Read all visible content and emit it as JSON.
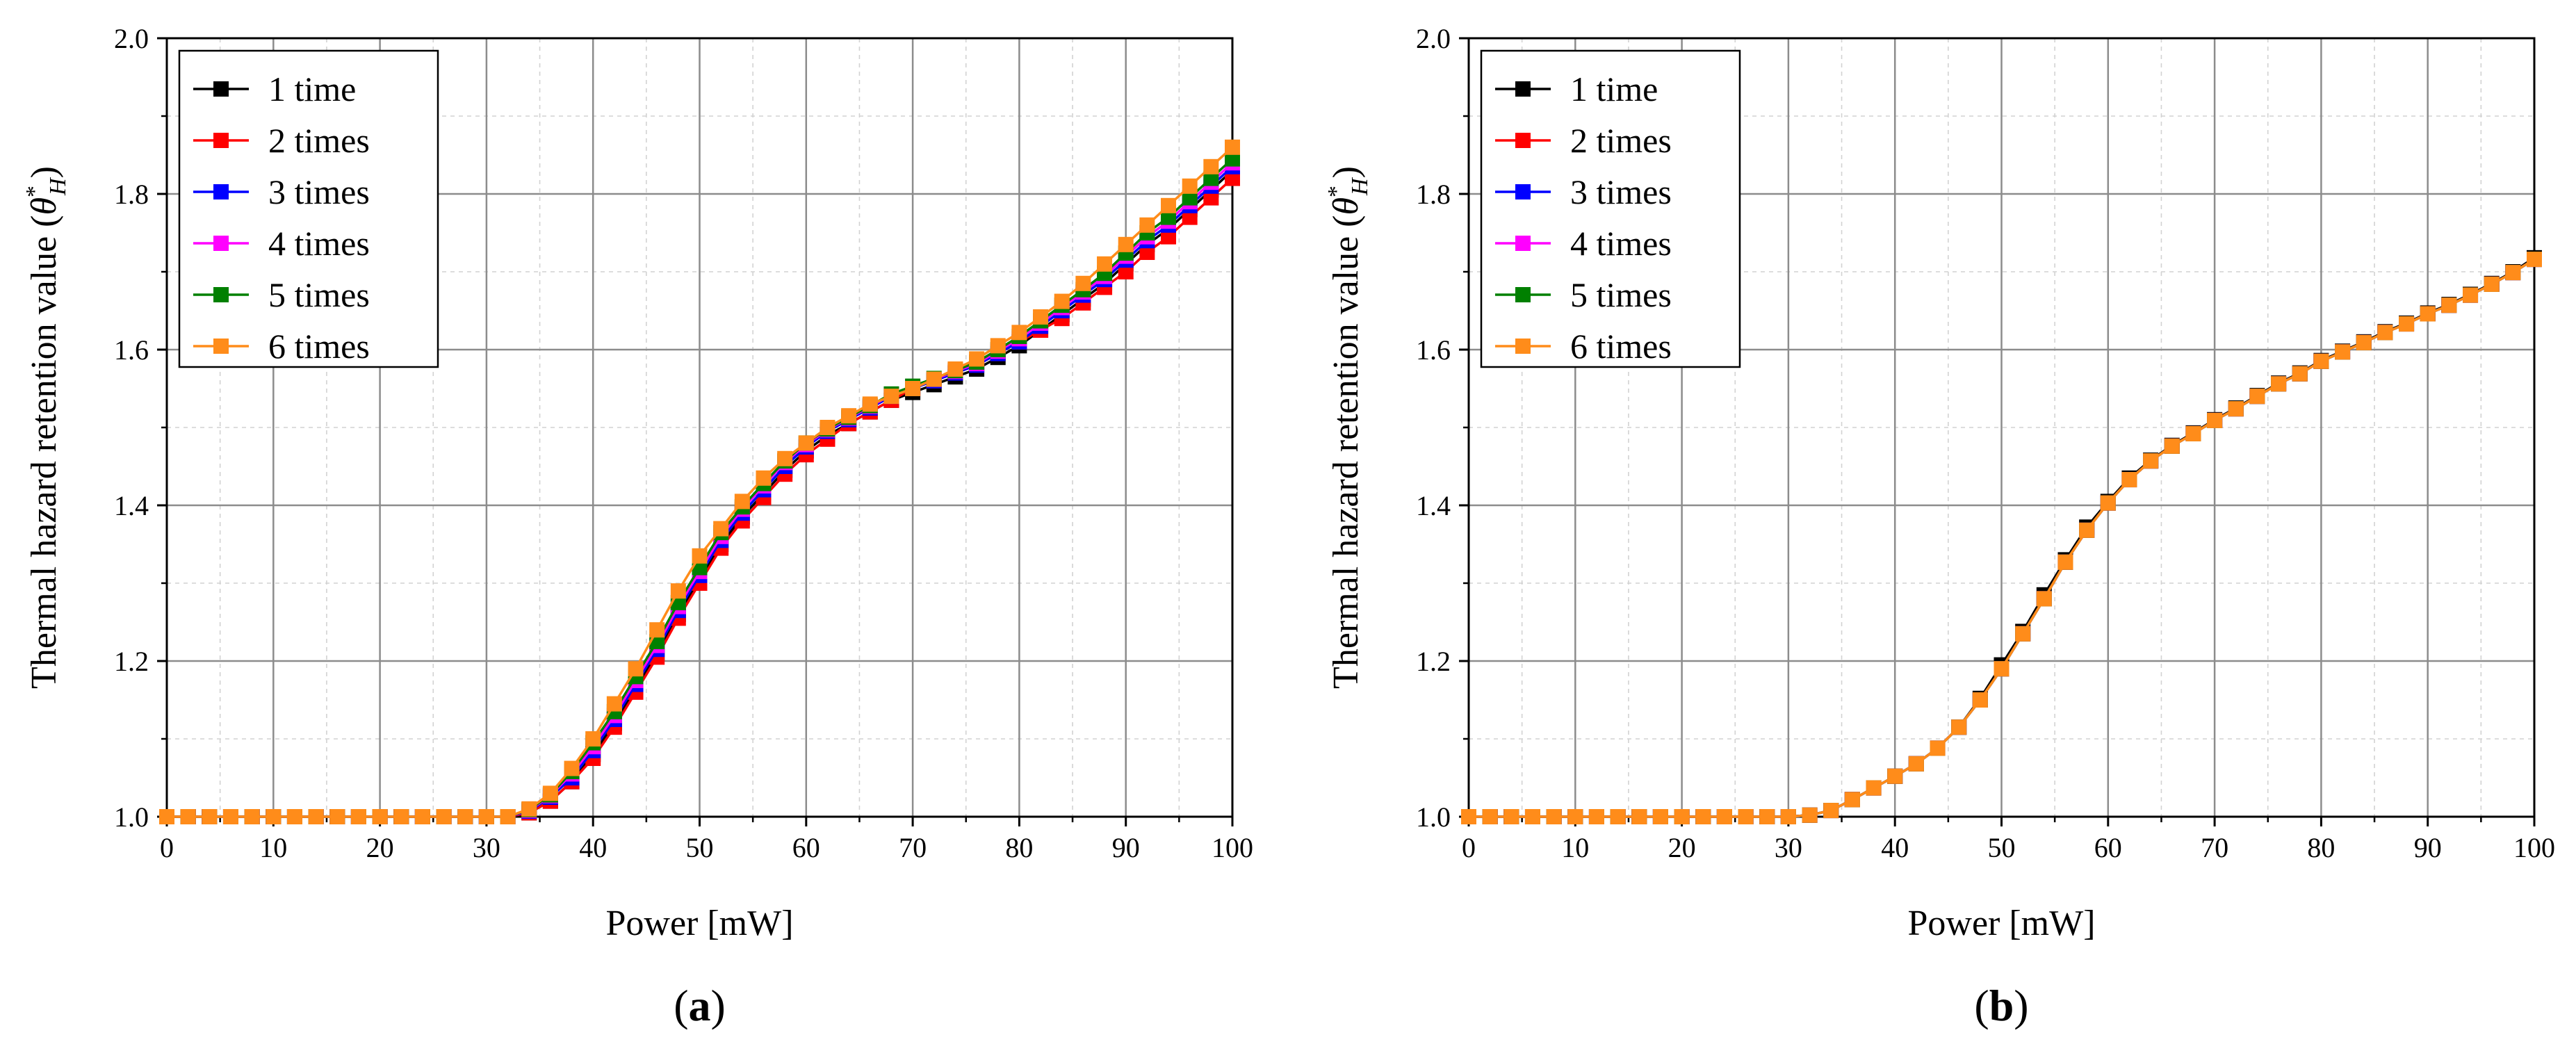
{
  "figure": {
    "panels": [
      "(a)",
      "(b)"
    ]
  },
  "colors": {
    "1 time": "#000000",
    "2 times": "#ff0000",
    "3 times": "#0000ff",
    "4 times": "#ff00ff",
    "5 times": "#008000",
    "6 times": "#ff8c1a"
  },
  "chart_data": [
    {
      "type": "line",
      "panel_label": "(a)",
      "xlabel": "Power [mW]",
      "ylabel": "Thermal hazard retention value (θ*H)",
      "xlim": [
        0,
        100
      ],
      "ylim": [
        1.0,
        2.0
      ],
      "xticks": [
        "0",
        "10",
        "20",
        "30",
        "40",
        "50",
        "60",
        "70",
        "80",
        "90",
        "100"
      ],
      "yticks": [
        "1.0",
        "1.2",
        "1.4",
        "1.6",
        "1.8",
        "2.0"
      ],
      "grid": true,
      "legend_position": "top-left",
      "x": [
        0,
        2,
        4,
        6,
        8,
        10,
        12,
        14,
        16,
        18,
        20,
        22,
        24,
        26,
        28,
        30,
        32,
        34,
        36,
        38,
        40,
        42,
        44,
        46,
        48,
        50,
        52,
        54,
        56,
        58,
        60,
        62,
        64,
        66,
        68,
        70,
        72,
        74,
        76,
        78,
        80,
        82,
        84,
        86,
        88,
        90,
        92,
        94,
        96,
        98,
        100
      ],
      "series": [
        {
          "name": "1 time",
          "values": [
            1.0,
            1.0,
            1.0,
            1.0,
            1.0,
            1.0,
            1.0,
            1.0,
            1.0,
            1.0,
            1.0,
            1.0,
            1.0,
            1.0,
            1.0,
            1.0,
            1.0,
            1.005,
            1.02,
            1.045,
            1.08,
            1.12,
            1.165,
            1.21,
            1.26,
            1.305,
            1.35,
            1.385,
            1.415,
            1.445,
            1.47,
            1.49,
            1.505,
            1.52,
            1.535,
            1.545,
            1.555,
            1.565,
            1.575,
            1.59,
            1.605,
            1.625,
            1.645,
            1.665,
            1.685,
            1.71,
            1.735,
            1.755,
            1.78,
            1.805,
            1.83
          ]
        },
        {
          "name": "2 times",
          "values": [
            1.0,
            1.0,
            1.0,
            1.0,
            1.0,
            1.0,
            1.0,
            1.0,
            1.0,
            1.0,
            1.0,
            1.0,
            1.0,
            1.0,
            1.0,
            1.0,
            1.0,
            1.005,
            1.02,
            1.045,
            1.075,
            1.115,
            1.16,
            1.205,
            1.255,
            1.3,
            1.345,
            1.38,
            1.41,
            1.44,
            1.465,
            1.485,
            1.505,
            1.52,
            1.535,
            1.55,
            1.56,
            1.57,
            1.58,
            1.595,
            1.61,
            1.625,
            1.64,
            1.66,
            1.68,
            1.7,
            1.725,
            1.745,
            1.77,
            1.795,
            1.82
          ]
        },
        {
          "name": "3 times",
          "values": [
            1.0,
            1.0,
            1.0,
            1.0,
            1.0,
            1.0,
            1.0,
            1.0,
            1.0,
            1.0,
            1.0,
            1.0,
            1.0,
            1.0,
            1.0,
            1.0,
            1.0,
            1.007,
            1.025,
            1.05,
            1.085,
            1.125,
            1.17,
            1.215,
            1.265,
            1.31,
            1.355,
            1.39,
            1.42,
            1.45,
            1.475,
            1.495,
            1.51,
            1.525,
            1.54,
            1.55,
            1.56,
            1.57,
            1.58,
            1.595,
            1.61,
            1.63,
            1.65,
            1.67,
            1.69,
            1.715,
            1.74,
            1.76,
            1.785,
            1.81,
            1.835
          ]
        },
        {
          "name": "4 times",
          "values": [
            1.0,
            1.0,
            1.0,
            1.0,
            1.0,
            1.0,
            1.0,
            1.0,
            1.0,
            1.0,
            1.0,
            1.0,
            1.0,
            1.0,
            1.0,
            1.0,
            1.0,
            1.008,
            1.027,
            1.055,
            1.09,
            1.13,
            1.175,
            1.22,
            1.27,
            1.315,
            1.36,
            1.395,
            1.425,
            1.455,
            1.478,
            1.497,
            1.512,
            1.527,
            1.542,
            1.552,
            1.562,
            1.572,
            1.582,
            1.598,
            1.614,
            1.634,
            1.654,
            1.674,
            1.694,
            1.72,
            1.745,
            1.765,
            1.79,
            1.815,
            1.84
          ]
        },
        {
          "name": "5 times",
          "values": [
            1.0,
            1.0,
            1.0,
            1.0,
            1.0,
            1.0,
            1.0,
            1.0,
            1.0,
            1.0,
            1.0,
            1.0,
            1.0,
            1.0,
            1.0,
            1.0,
            1.0,
            1.009,
            1.028,
            1.058,
            1.095,
            1.135,
            1.18,
            1.225,
            1.275,
            1.32,
            1.365,
            1.398,
            1.428,
            1.457,
            1.48,
            1.498,
            1.513,
            1.528,
            1.543,
            1.553,
            1.563,
            1.573,
            1.584,
            1.6,
            1.617,
            1.637,
            1.657,
            1.677,
            1.698,
            1.724,
            1.75,
            1.77,
            1.795,
            1.82,
            1.845
          ]
        },
        {
          "name": "6 times",
          "values": [
            1.0,
            1.0,
            1.0,
            1.0,
            1.0,
            1.0,
            1.0,
            1.0,
            1.0,
            1.0,
            1.0,
            1.0,
            1.0,
            1.0,
            1.0,
            1.0,
            1.0,
            1.01,
            1.03,
            1.062,
            1.1,
            1.145,
            1.19,
            1.24,
            1.29,
            1.335,
            1.37,
            1.405,
            1.435,
            1.46,
            1.48,
            1.5,
            1.515,
            1.53,
            1.54,
            1.55,
            1.562,
            1.575,
            1.588,
            1.605,
            1.622,
            1.642,
            1.662,
            1.685,
            1.71,
            1.735,
            1.76,
            1.785,
            1.81,
            1.835,
            1.86
          ]
        }
      ]
    },
    {
      "type": "line",
      "panel_label": "(b)",
      "xlabel": "Power [mW]",
      "ylabel": "Thermal hazard retention value (θ*H)",
      "xlim": [
        0,
        100
      ],
      "ylim": [
        1.0,
        2.0
      ],
      "xticks": [
        "0",
        "10",
        "20",
        "30",
        "40",
        "50",
        "60",
        "70",
        "80",
        "90",
        "100"
      ],
      "yticks": [
        "1.0",
        "1.2",
        "1.4",
        "1.6",
        "1.8",
        "2.0"
      ],
      "grid": true,
      "legend_position": "top-left",
      "x": [
        0,
        2,
        4,
        6,
        8,
        10,
        12,
        14,
        16,
        18,
        20,
        22,
        24,
        26,
        28,
        30,
        32,
        34,
        36,
        38,
        40,
        42,
        44,
        46,
        48,
        50,
        52,
        54,
        56,
        58,
        60,
        62,
        64,
        66,
        68,
        70,
        72,
        74,
        76,
        78,
        80,
        82,
        84,
        86,
        88,
        90,
        92,
        94,
        96,
        98,
        100
      ],
      "series": [
        {
          "name": "1 time",
          "values": [
            1.0,
            1.0,
            1.0,
            1.0,
            1.0,
            1.0,
            1.0,
            1.0,
            1.0,
            1.0,
            1.0,
            1.0,
            1.0,
            1.0,
            1.0,
            1.0,
            1.002,
            1.008,
            1.022,
            1.037,
            1.052,
            1.068,
            1.088,
            1.115,
            1.152,
            1.195,
            1.238,
            1.285,
            1.33,
            1.372,
            1.405,
            1.435,
            1.458,
            1.477,
            1.493,
            1.51,
            1.525,
            1.541,
            1.557,
            1.57,
            1.586,
            1.598,
            1.61,
            1.623,
            1.634,
            1.647,
            1.658,
            1.671,
            1.685,
            1.7,
            1.718
          ]
        },
        {
          "name": "2 times",
          "values": [
            1.0,
            1.0,
            1.0,
            1.0,
            1.0,
            1.0,
            1.0,
            1.0,
            1.0,
            1.0,
            1.0,
            1.0,
            1.0,
            1.0,
            1.0,
            1.0,
            1.002,
            1.008,
            1.022,
            1.037,
            1.052,
            1.068,
            1.088,
            1.115,
            1.15,
            1.19,
            1.235,
            1.28,
            1.327,
            1.368,
            1.403,
            1.433,
            1.457,
            1.476,
            1.492,
            1.509,
            1.524,
            1.54,
            1.556,
            1.569,
            1.585,
            1.597,
            1.609,
            1.622,
            1.633,
            1.646,
            1.657,
            1.67,
            1.684,
            1.699,
            1.716
          ]
        },
        {
          "name": "3 times",
          "values": [
            1.0,
            1.0,
            1.0,
            1.0,
            1.0,
            1.0,
            1.0,
            1.0,
            1.0,
            1.0,
            1.0,
            1.0,
            1.0,
            1.0,
            1.0,
            1.0,
            1.002,
            1.008,
            1.022,
            1.037,
            1.052,
            1.068,
            1.088,
            1.115,
            1.15,
            1.19,
            1.235,
            1.28,
            1.327,
            1.368,
            1.403,
            1.433,
            1.457,
            1.476,
            1.492,
            1.509,
            1.524,
            1.54,
            1.556,
            1.569,
            1.585,
            1.597,
            1.609,
            1.622,
            1.633,
            1.646,
            1.657,
            1.67,
            1.684,
            1.699,
            1.716
          ]
        },
        {
          "name": "4 times",
          "values": [
            1.0,
            1.0,
            1.0,
            1.0,
            1.0,
            1.0,
            1.0,
            1.0,
            1.0,
            1.0,
            1.0,
            1.0,
            1.0,
            1.0,
            1.0,
            1.0,
            1.002,
            1.008,
            1.022,
            1.037,
            1.052,
            1.068,
            1.088,
            1.115,
            1.15,
            1.19,
            1.235,
            1.28,
            1.327,
            1.368,
            1.403,
            1.433,
            1.457,
            1.476,
            1.492,
            1.509,
            1.524,
            1.54,
            1.556,
            1.569,
            1.585,
            1.597,
            1.609,
            1.622,
            1.633,
            1.646,
            1.657,
            1.67,
            1.684,
            1.699,
            1.716
          ]
        },
        {
          "name": "5 times",
          "values": [
            1.0,
            1.0,
            1.0,
            1.0,
            1.0,
            1.0,
            1.0,
            1.0,
            1.0,
            1.0,
            1.0,
            1.0,
            1.0,
            1.0,
            1.0,
            1.0,
            1.002,
            1.008,
            1.022,
            1.037,
            1.052,
            1.068,
            1.088,
            1.115,
            1.15,
            1.19,
            1.235,
            1.28,
            1.327,
            1.368,
            1.403,
            1.433,
            1.457,
            1.476,
            1.492,
            1.509,
            1.524,
            1.54,
            1.556,
            1.569,
            1.585,
            1.597,
            1.609,
            1.622,
            1.633,
            1.646,
            1.657,
            1.67,
            1.684,
            1.699,
            1.716
          ]
        },
        {
          "name": "6 times",
          "values": [
            1.0,
            1.0,
            1.0,
            1.0,
            1.0,
            1.0,
            1.0,
            1.0,
            1.0,
            1.0,
            1.0,
            1.0,
            1.0,
            1.0,
            1.0,
            1.0,
            1.002,
            1.008,
            1.022,
            1.037,
            1.052,
            1.068,
            1.088,
            1.115,
            1.15,
            1.19,
            1.235,
            1.28,
            1.327,
            1.368,
            1.403,
            1.433,
            1.457,
            1.476,
            1.492,
            1.509,
            1.524,
            1.54,
            1.556,
            1.569,
            1.585,
            1.597,
            1.609,
            1.622,
            1.633,
            1.646,
            1.657,
            1.67,
            1.684,
            1.699,
            1.716
          ]
        }
      ]
    }
  ]
}
